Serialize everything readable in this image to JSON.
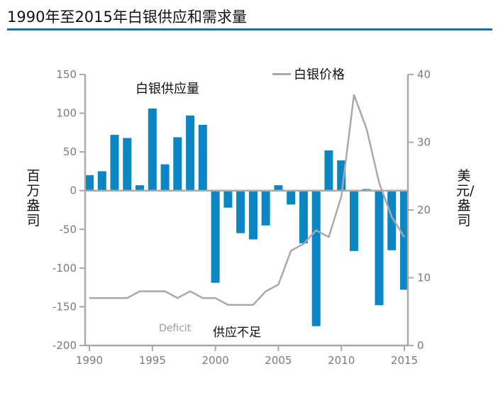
{
  "title": "1990年至2015年白银供应和需求量",
  "chart_data": {
    "type": "bar",
    "title": "1990年至2015年白银供应和需求量",
    "x": [
      1990,
      1991,
      1992,
      1993,
      1994,
      1995,
      1996,
      1997,
      1998,
      1999,
      2000,
      2001,
      2002,
      2003,
      2004,
      2005,
      2006,
      2007,
      2008,
      2009,
      2010,
      2011,
      2012,
      2013,
      2014,
      2015
    ],
    "xticks": [
      "1990",
      "1995",
      "2000",
      "2005",
      "2010",
      "2015"
    ],
    "series": [
      {
        "name": "白银供应量",
        "type": "bar",
        "axis": "left",
        "color": "#0a86c5",
        "values": [
          20,
          25,
          72,
          68,
          7,
          106,
          34,
          69,
          97,
          85,
          -119,
          -22,
          -55,
          -63,
          -45,
          7,
          -18,
          -68,
          -175,
          52,
          39,
          -78,
          2,
          -148,
          -77,
          -128
        ]
      },
      {
        "name": "白银价格",
        "type": "line",
        "axis": "right",
        "color": "#a9a9a9",
        "values": [
          7.0,
          7.0,
          7.0,
          7.0,
          8.0,
          8.0,
          8.0,
          7.0,
          8.0,
          7.0,
          7.0,
          6.0,
          6.0,
          6.0,
          8.0,
          9.0,
          14.0,
          15.0,
          17.0,
          16.0,
          22.0,
          37.0,
          32.0,
          24.0,
          19.0,
          16.0
        ]
      }
    ],
    "ylabel": "百万盎司",
    "y2label": "美元/盎司",
    "ylim": [
      -200,
      150
    ],
    "y2lim": [
      0,
      40
    ],
    "yticks": [
      "150",
      "100",
      "50",
      "0",
      "-50",
      "-100",
      "-150",
      "-200"
    ],
    "y2ticks": [
      "40",
      "30",
      "20",
      "10",
      "0"
    ],
    "legend": {
      "label": "白银价格",
      "placement": "top-right"
    },
    "annotations": {
      "supply": "白银供应量",
      "deficit_en": "Deficit",
      "deficit_zh": "供应不足"
    },
    "grid": false
  }
}
